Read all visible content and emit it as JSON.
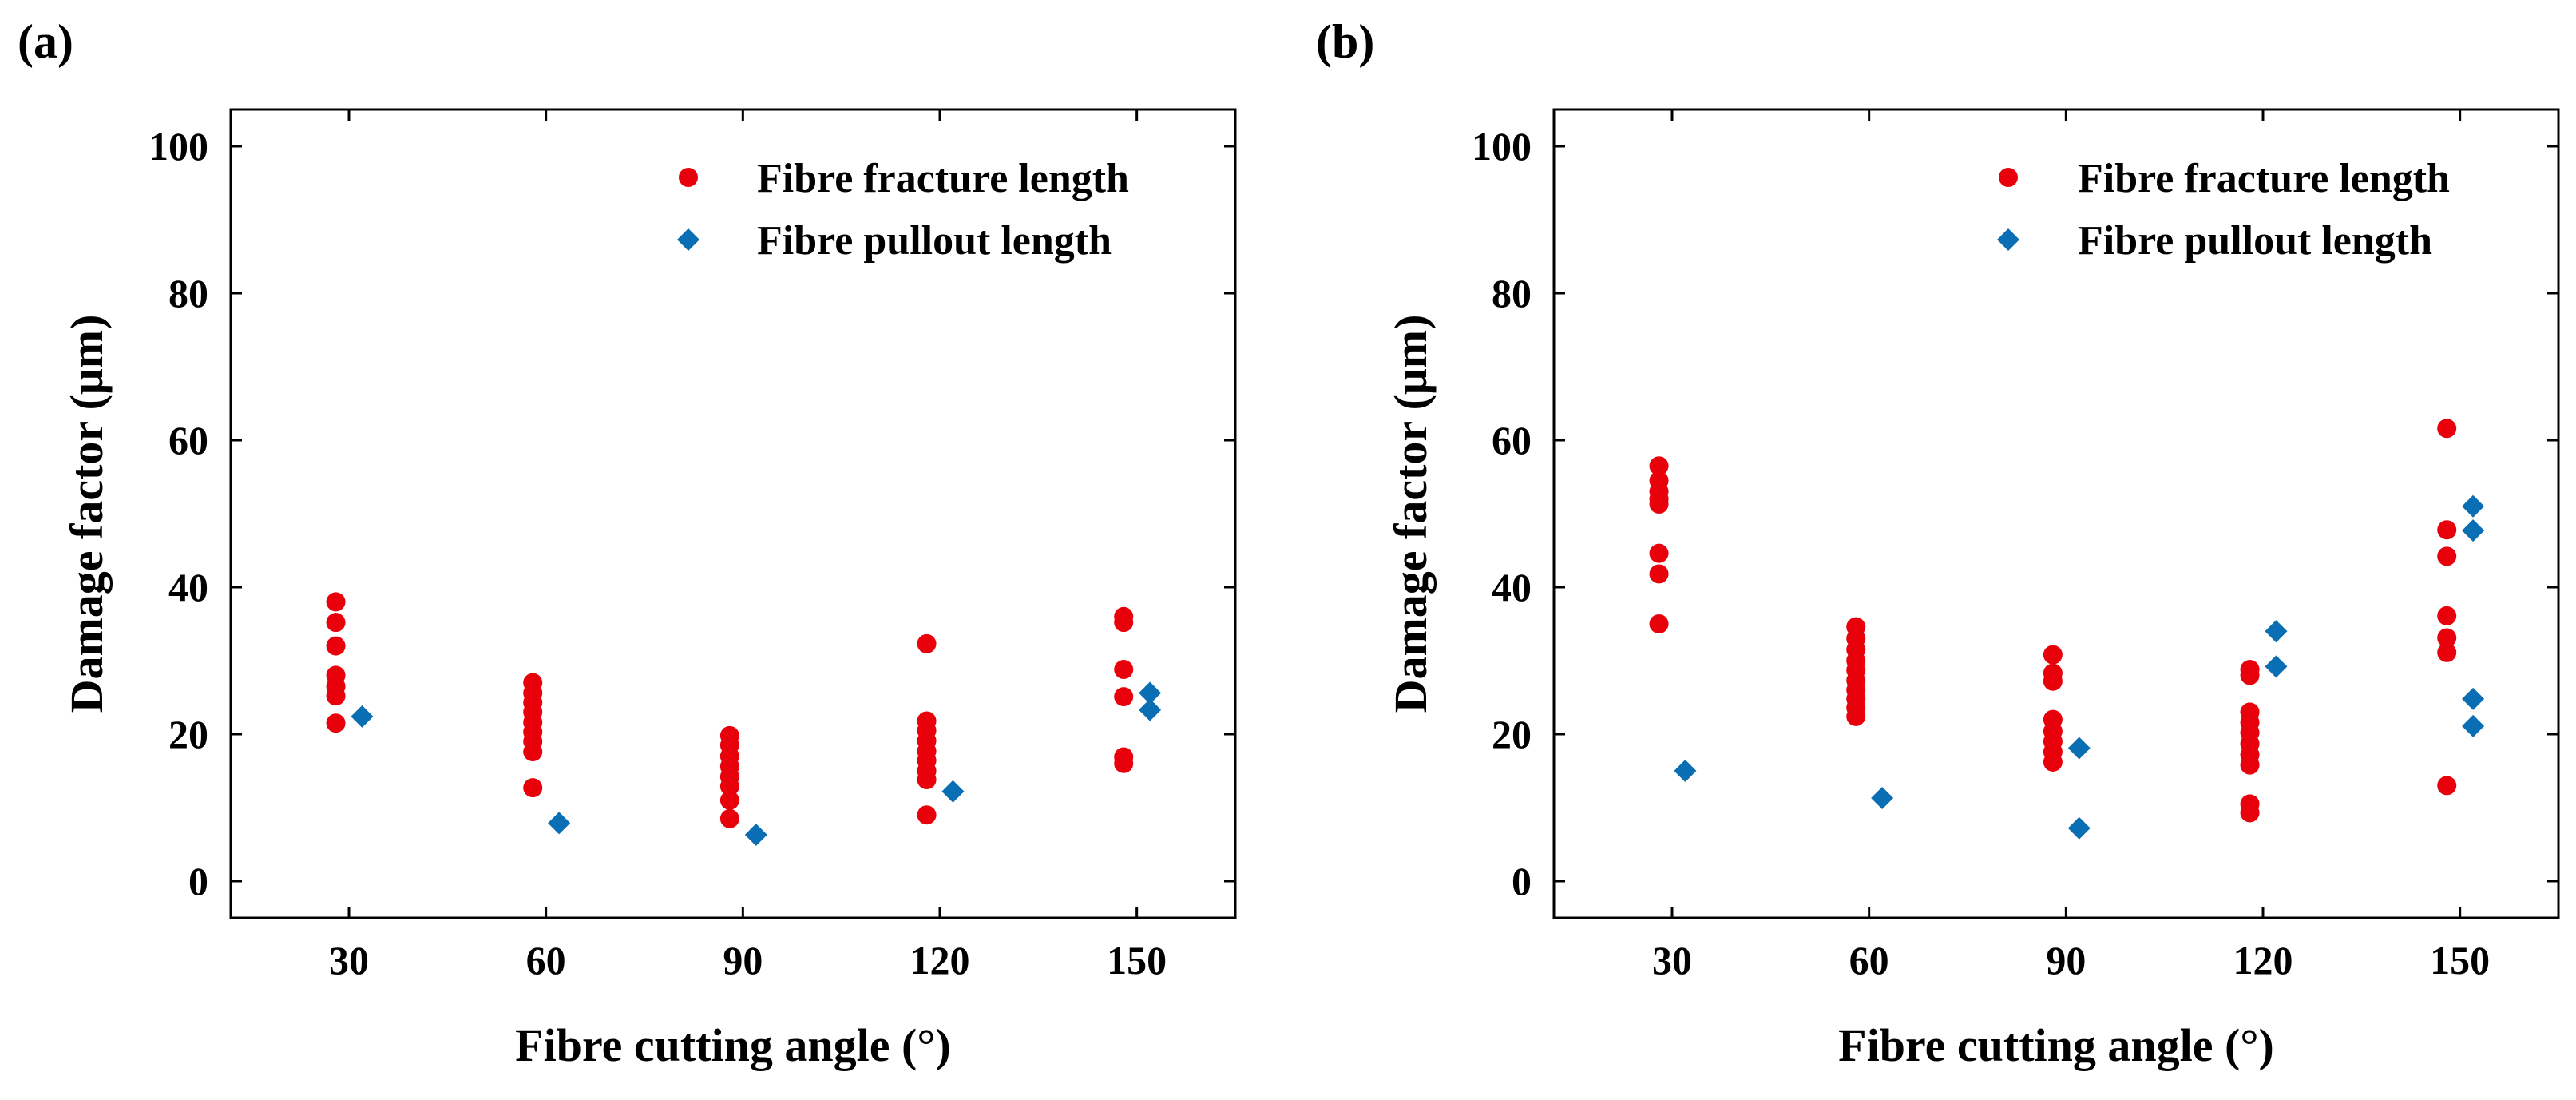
{
  "colors": {
    "fracture": "#e8000b",
    "pullout": "#0a6eb4",
    "axis": "#000000",
    "background": "#ffffff"
  },
  "chart_data": [
    {
      "panel_label": "(a)",
      "type": "scatter",
      "xlabel": "Fibre cutting angle (°)",
      "ylabel": "Damage factor (μm)",
      "xlim": [
        12,
        165
      ],
      "ylim": [
        -5,
        105
      ],
      "xticks": [
        30,
        60,
        90,
        120,
        150
      ],
      "yticks": [
        0,
        20,
        40,
        60,
        80,
        100
      ],
      "legend_position": "top-right",
      "series": [
        {
          "name": "Fibre fracture length",
          "marker": "circle",
          "color": "#e8000b",
          "points": [
            [
              28,
              38
            ],
            [
              28,
              35.2
            ],
            [
              28,
              32
            ],
            [
              28,
              28
            ],
            [
              28,
              26.5
            ],
            [
              28,
              25.2
            ],
            [
              28,
              21.5
            ],
            [
              58,
              27
            ],
            [
              58,
              25.6
            ],
            [
              58,
              24.3
            ],
            [
              58,
              23
            ],
            [
              58,
              21.6
            ],
            [
              58,
              20.3
            ],
            [
              58,
              19
            ],
            [
              58,
              17.6
            ],
            [
              58,
              12.7
            ],
            [
              88,
              19.8
            ],
            [
              88,
              18.5
            ],
            [
              88,
              17
            ],
            [
              88,
              15.6
            ],
            [
              88,
              14.2
            ],
            [
              88,
              12.9
            ],
            [
              88,
              11
            ],
            [
              88,
              8.5
            ],
            [
              118,
              32.3
            ],
            [
              118,
              21.8
            ],
            [
              118,
              20.5
            ],
            [
              118,
              19.1
            ],
            [
              118,
              17.7
            ],
            [
              118,
              16.4
            ],
            [
              118,
              15
            ],
            [
              118,
              13.8
            ],
            [
              118,
              9
            ],
            [
              148,
              36
            ],
            [
              148,
              35.2
            ],
            [
              148,
              28.8
            ],
            [
              148,
              25.1
            ],
            [
              148,
              16.9
            ],
            [
              148,
              16
            ]
          ]
        },
        {
          "name": "Fibre pullout length",
          "marker": "diamond",
          "color": "#0a6eb4",
          "points": [
            [
              32,
              22.4
            ],
            [
              62,
              7.9
            ],
            [
              92,
              6.3
            ],
            [
              122,
              12.2
            ],
            [
              152,
              25.6
            ],
            [
              152,
              23.3
            ]
          ]
        }
      ]
    },
    {
      "panel_label": "(b)",
      "type": "scatter",
      "xlabel": "Fibre cutting angle (°)",
      "ylabel": "Damage factor (μm)",
      "xlim": [
        12,
        165
      ],
      "ylim": [
        -5,
        105
      ],
      "xticks": [
        30,
        60,
        90,
        120,
        150
      ],
      "yticks": [
        0,
        20,
        40,
        60,
        80,
        100
      ],
      "legend_position": "top-right",
      "series": [
        {
          "name": "Fibre fracture length",
          "marker": "circle",
          "color": "#e8000b",
          "points": [
            [
              28,
              56.5
            ],
            [
              28,
              54.5
            ],
            [
              28,
              53
            ],
            [
              28,
              52
            ],
            [
              28,
              51.3
            ],
            [
              28,
              44.6
            ],
            [
              28,
              41.8
            ],
            [
              28,
              35
            ],
            [
              58,
              34.6
            ],
            [
              58,
              33
            ],
            [
              58,
              31.5
            ],
            [
              58,
              30
            ],
            [
              58,
              28.7
            ],
            [
              58,
              27.3
            ],
            [
              58,
              26
            ],
            [
              58,
              24.8
            ],
            [
              58,
              23.6
            ],
            [
              58,
              22.4
            ],
            [
              88,
              30.8
            ],
            [
              88,
              28.3
            ],
            [
              88,
              27.2
            ],
            [
              88,
              22
            ],
            [
              88,
              20.4
            ],
            [
              88,
              19
            ],
            [
              88,
              17.6
            ],
            [
              88,
              16.2
            ],
            [
              118,
              28.8
            ],
            [
              118,
              28
            ],
            [
              118,
              23
            ],
            [
              118,
              21.6
            ],
            [
              118,
              20.2
            ],
            [
              118,
              18.7
            ],
            [
              118,
              17.2
            ],
            [
              118,
              15.8
            ],
            [
              118,
              10.5
            ],
            [
              118,
              9.3
            ],
            [
              148,
              61.6
            ],
            [
              148,
              47.8
            ],
            [
              148,
              44.2
            ],
            [
              148,
              36.1
            ],
            [
              148,
              33.1
            ],
            [
              148,
              31.1
            ],
            [
              148,
              13
            ]
          ]
        },
        {
          "name": "Fibre pullout length",
          "marker": "diamond",
          "color": "#0a6eb4",
          "points": [
            [
              32,
              15
            ],
            [
              62,
              11.3
            ],
            [
              92,
              18.1
            ],
            [
              92,
              7.2
            ],
            [
              122,
              34
            ],
            [
              122,
              29.2
            ],
            [
              152,
              51
            ],
            [
              152,
              47.7
            ],
            [
              152,
              24.8
            ],
            [
              152,
              21.1
            ]
          ]
        }
      ]
    }
  ]
}
